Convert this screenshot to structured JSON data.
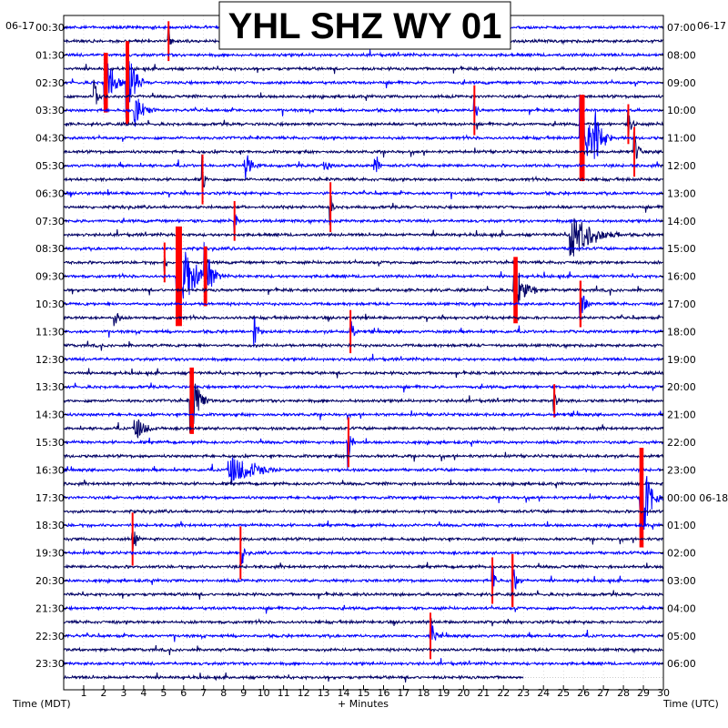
{
  "chart_data": {
    "type": "helicorder",
    "title": "YHL SHZ WY 01",
    "date_left": "06-17",
    "date_right": "06-17",
    "xlabel": "+ Minutes",
    "left_axis_label": "Time (MDT)",
    "right_axis_label": "Time (UTC)",
    "x_ticks": [
      1,
      2,
      3,
      4,
      5,
      6,
      7,
      8,
      9,
      10,
      11,
      12,
      13,
      14,
      15,
      16,
      17,
      18,
      19,
      20,
      21,
      22,
      23,
      24,
      25,
      26,
      27,
      28,
      29,
      30
    ],
    "xlim": [
      0,
      30
    ],
    "left_labels": [
      "00:30",
      "01:30",
      "02:30",
      "03:30",
      "04:30",
      "05:30",
      "06:30",
      "07:30",
      "08:30",
      "09:30",
      "10:30",
      "11:30",
      "12:30",
      "13:30",
      "14:30",
      "15:30",
      "16:30",
      "17:30",
      "18:30",
      "19:30",
      "20:30",
      "21:30",
      "22:30",
      "23:30"
    ],
    "right_labels": [
      "07:00",
      "08:00",
      "09:00",
      "10:00",
      "11:00",
      "12:00",
      "13:00",
      "14:00",
      "15:00",
      "16:00",
      "17:00",
      "18:00",
      "19:00",
      "20:00",
      "21:00",
      "22:00",
      "23:00",
      "00:00 06-18",
      "01:00",
      "02:00",
      "03:00",
      "04:00",
      "05:00",
      "06:00"
    ],
    "trace_count": 48,
    "minutes_per_line": 30,
    "trace_colors": [
      "#0000ff",
      "#000066"
    ],
    "clip_color": "#ff0000",
    "grid": "dotted",
    "last_trace_end_minute": 23,
    "events": [
      {
        "line": 1,
        "minute": 5.2,
        "amp": 1.2,
        "clipped": true,
        "dur": 0.3
      },
      {
        "line": 4,
        "minute": 2.0,
        "amp": 1.8,
        "clipped": true,
        "dur": 1.2
      },
      {
        "line": 4,
        "minute": 3.1,
        "amp": 2.5,
        "clipped": true,
        "dur": 1.0
      },
      {
        "line": 5,
        "minute": 1.5,
        "amp": 1.0,
        "clipped": false,
        "dur": 0.6
      },
      {
        "line": 6,
        "minute": 3.5,
        "amp": 1.0,
        "clipped": false,
        "dur": 1.2
      },
      {
        "line": 6,
        "minute": 20.5,
        "amp": 1.5,
        "clipped": true,
        "dur": 0.3
      },
      {
        "line": 7,
        "minute": 28.2,
        "amp": 1.2,
        "clipped": true,
        "dur": 0.5
      },
      {
        "line": 8,
        "minute": 25.8,
        "amp": 2.6,
        "clipped": true,
        "dur": 1.5
      },
      {
        "line": 8,
        "minute": 26.5,
        "amp": 1.5,
        "clipped": false,
        "dur": 1.0
      },
      {
        "line": 9,
        "minute": 28.5,
        "amp": 1.5,
        "clipped": true,
        "dur": 0.5
      },
      {
        "line": 10,
        "minute": 9.0,
        "amp": 1.0,
        "clipped": false,
        "dur": 1.0
      },
      {
        "line": 10,
        "minute": 13.0,
        "amp": 0.9,
        "clipped": false,
        "dur": 0.5
      },
      {
        "line": 10,
        "minute": 15.5,
        "amp": 1.2,
        "clipped": false,
        "dur": 0.5
      },
      {
        "line": 11,
        "minute": 6.9,
        "amp": 1.5,
        "clipped": true,
        "dur": 0.3
      },
      {
        "line": 13,
        "minute": 13.3,
        "amp": 1.5,
        "clipped": true,
        "dur": 0.3
      },
      {
        "line": 14,
        "minute": 8.5,
        "amp": 1.2,
        "clipped": true,
        "dur": 0.3
      },
      {
        "line": 15,
        "minute": 25.3,
        "amp": 1.6,
        "clipped": false,
        "dur": 2.5
      },
      {
        "line": 17,
        "minute": 5.0,
        "amp": 1.2,
        "clipped": true,
        "dur": 0.3
      },
      {
        "line": 18,
        "minute": 5.6,
        "amp": 3.0,
        "clipped": true,
        "dur": 1.8
      },
      {
        "line": 18,
        "minute": 7.0,
        "amp": 1.8,
        "clipped": true,
        "dur": 1.0
      },
      {
        "line": 19,
        "minute": 22.5,
        "amp": 2.0,
        "clipped": true,
        "dur": 1.2
      },
      {
        "line": 20,
        "minute": 25.8,
        "amp": 1.4,
        "clipped": true,
        "dur": 0.6
      },
      {
        "line": 21,
        "minute": 2.5,
        "amp": 1.0,
        "clipped": false,
        "dur": 0.5
      },
      {
        "line": 22,
        "minute": 14.3,
        "amp": 1.3,
        "clipped": true,
        "dur": 0.4
      },
      {
        "line": 22,
        "minute": 9.5,
        "amp": 1.0,
        "clipped": false,
        "dur": 0.5
      },
      {
        "line": 27,
        "minute": 6.3,
        "amp": 2.0,
        "clipped": true,
        "dur": 1.2
      },
      {
        "line": 27,
        "minute": 24.5,
        "amp": 1.0,
        "clipped": true,
        "dur": 0.3
      },
      {
        "line": 29,
        "minute": 3.5,
        "amp": 1.0,
        "clipped": false,
        "dur": 1.2
      },
      {
        "line": 30,
        "minute": 14.2,
        "amp": 1.5,
        "clipped": true,
        "dur": 0.4
      },
      {
        "line": 32,
        "minute": 8.2,
        "amp": 1.0,
        "clipped": false,
        "dur": 3.0
      },
      {
        "line": 34,
        "minute": 28.8,
        "amp": 3.0,
        "clipped": true,
        "dur": 1.2
      },
      {
        "line": 37,
        "minute": 3.4,
        "amp": 1.6,
        "clipped": true,
        "dur": 0.4
      },
      {
        "line": 38,
        "minute": 8.8,
        "amp": 1.6,
        "clipped": true,
        "dur": 0.4
      },
      {
        "line": 40,
        "minute": 21.4,
        "amp": 1.4,
        "clipped": true,
        "dur": 0.4
      },
      {
        "line": 40,
        "minute": 22.4,
        "amp": 1.6,
        "clipped": true,
        "dur": 0.6
      },
      {
        "line": 44,
        "minute": 18.3,
        "amp": 1.4,
        "clipped": true,
        "dur": 0.5
      }
    ]
  }
}
